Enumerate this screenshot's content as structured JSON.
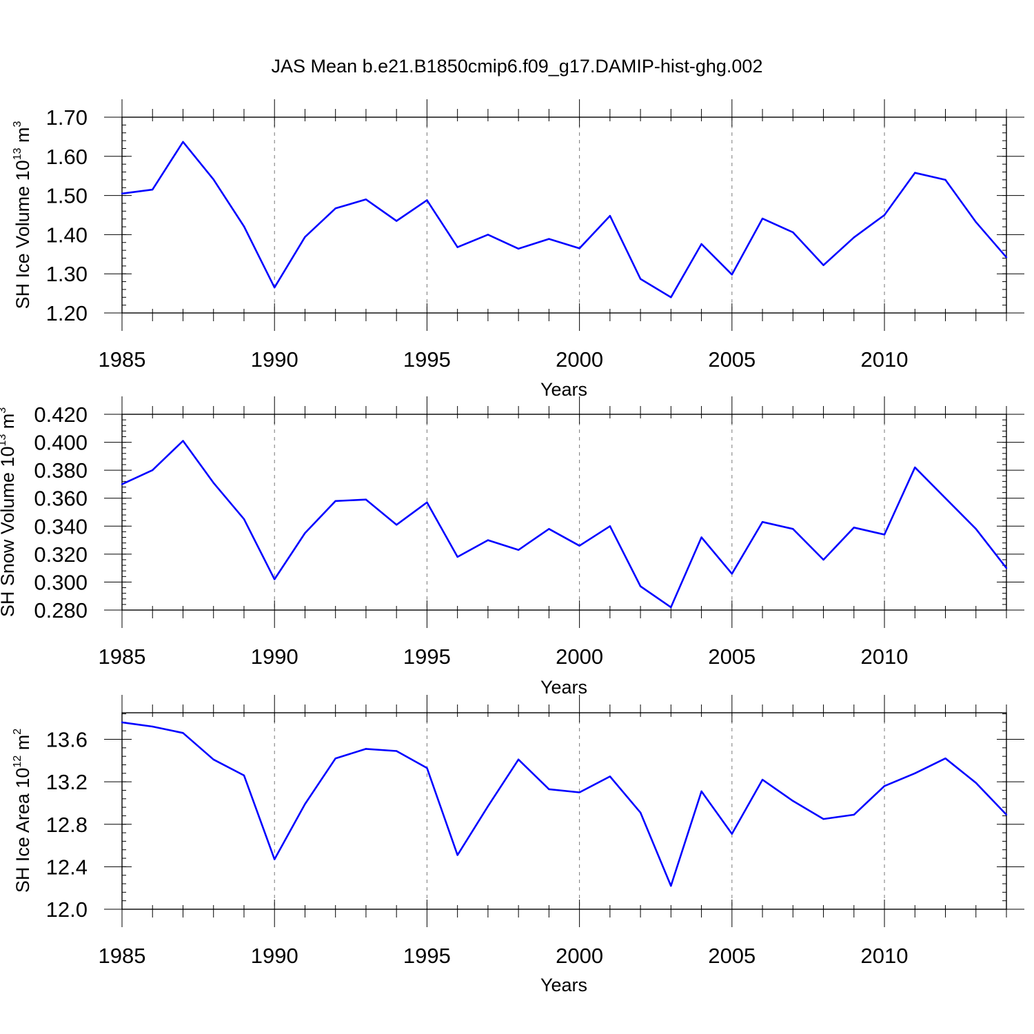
{
  "figure": {
    "title": "JAS Mean b.e21.B1850cmip6.f09_g17.DAMIP-hist-ghg.002"
  },
  "colors": {
    "series": "#0000ff",
    "axes": "#000000",
    "grid": "#777777"
  },
  "chart_data": [
    {
      "type": "line",
      "name": "sh-ice-volume",
      "ylabel_main": "SH Ice Volume 10",
      "ylabel_exp": "13",
      "ylabel_unit": " m",
      "ylabel_unit_exp": "3",
      "xlabel": "Years",
      "xlim": [
        1985,
        2014
      ],
      "ylim": [
        1.2,
        1.7
      ],
      "xticks": [
        1985,
        1990,
        1995,
        2000,
        2005,
        2010
      ],
      "xtick_labels": [
        "1985",
        "1990",
        "1995",
        "2000",
        "2005",
        "2010"
      ],
      "yticks": [
        1.2,
        1.3,
        1.4,
        1.5,
        1.6,
        1.7
      ],
      "ytick_labels": [
        "1.20",
        "1.30",
        "1.40",
        "1.50",
        "1.60",
        "1.70"
      ],
      "y_minor_step": 0.02,
      "grid_x": true,
      "x": [
        1985,
        1986,
        1987,
        1988,
        1989,
        1990,
        1991,
        1992,
        1993,
        1994,
        1995,
        1996,
        1997,
        1998,
        1999,
        2000,
        2001,
        2002,
        2003,
        2004,
        2005,
        2006,
        2007,
        2008,
        2009,
        2010,
        2011,
        2012,
        2013,
        2014
      ],
      "values": [
        1.505,
        1.515,
        1.637,
        1.541,
        1.421,
        1.265,
        1.394,
        1.467,
        1.49,
        1.435,
        1.488,
        1.368,
        1.4,
        1.364,
        1.389,
        1.365,
        1.448,
        1.287,
        1.24,
        1.376,
        1.298,
        1.441,
        1.406,
        1.322,
        1.393,
        1.45,
        1.558,
        1.54,
        1.432,
        1.342
      ]
    },
    {
      "type": "line",
      "name": "sh-snow-volume",
      "ylabel_main": "SH Snow Volume 10",
      "ylabel_exp": "13",
      "ylabel_unit": " m",
      "ylabel_unit_exp": "3",
      "xlabel": "Years",
      "xlim": [
        1985,
        2014
      ],
      "ylim": [
        0.28,
        0.42
      ],
      "xticks": [
        1985,
        1990,
        1995,
        2000,
        2005,
        2010
      ],
      "xtick_labels": [
        "1985",
        "1990",
        "1995",
        "2000",
        "2005",
        "2010"
      ],
      "yticks": [
        0.28,
        0.3,
        0.32,
        0.34,
        0.36,
        0.38,
        0.4,
        0.42
      ],
      "ytick_labels": [
        "0.280",
        "0.300",
        "0.320",
        "0.340",
        "0.360",
        "0.380",
        "0.400",
        "0.420"
      ],
      "y_minor_step": 0.004,
      "grid_x": true,
      "x": [
        1985,
        1986,
        1987,
        1988,
        1989,
        1990,
        1991,
        1992,
        1993,
        1994,
        1995,
        1996,
        1997,
        1998,
        1999,
        2000,
        2001,
        2002,
        2003,
        2004,
        2005,
        2006,
        2007,
        2008,
        2009,
        2010,
        2011,
        2012,
        2013,
        2014
      ],
      "values": [
        0.37,
        0.38,
        0.401,
        0.371,
        0.345,
        0.302,
        0.335,
        0.358,
        0.359,
        0.341,
        0.357,
        0.318,
        0.33,
        0.323,
        0.338,
        0.326,
        0.34,
        0.297,
        0.282,
        0.332,
        0.306,
        0.343,
        0.338,
        0.316,
        0.339,
        0.334,
        0.382,
        0.36,
        0.338,
        0.31
      ]
    },
    {
      "type": "line",
      "name": "sh-ice-area",
      "ylabel_main": "SH Ice Area 10",
      "ylabel_exp": "12",
      "ylabel_unit": " m",
      "ylabel_unit_exp": "2",
      "xlabel": "Years",
      "xlim": [
        1985,
        2014
      ],
      "ylim": [
        12.0,
        13.85
      ],
      "xticks": [
        1985,
        1990,
        1995,
        2000,
        2005,
        2010
      ],
      "xtick_labels": [
        "1985",
        "1990",
        "1995",
        "2000",
        "2005",
        "2010"
      ],
      "yticks": [
        12.0,
        12.4,
        12.8,
        13.2,
        13.6
      ],
      "ytick_labels": [
        "12.0",
        "12.4",
        "12.8",
        "13.2",
        "13.6"
      ],
      "y_minor_step": 0.08,
      "grid_x": true,
      "x": [
        1985,
        1986,
        1987,
        1988,
        1989,
        1990,
        1991,
        1992,
        1993,
        1994,
        1995,
        1996,
        1997,
        1998,
        1999,
        2000,
        2001,
        2002,
        2003,
        2004,
        2005,
        2006,
        2007,
        2008,
        2009,
        2010,
        2011,
        2012,
        2013,
        2014
      ],
      "values": [
        13.76,
        13.72,
        13.66,
        13.41,
        13.26,
        12.47,
        12.99,
        13.42,
        13.51,
        13.49,
        13.33,
        12.51,
        12.97,
        13.41,
        13.13,
        13.1,
        13.25,
        12.91,
        12.22,
        13.11,
        12.71,
        13.22,
        13.02,
        12.85,
        12.89,
        13.16,
        13.28,
        13.42,
        13.19,
        12.89
      ]
    }
  ]
}
